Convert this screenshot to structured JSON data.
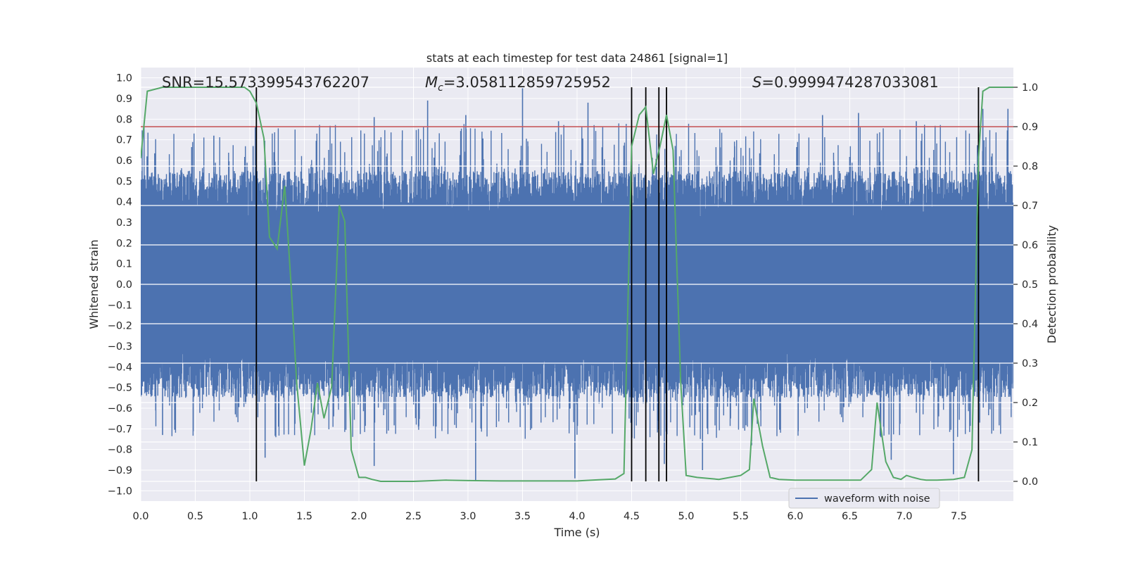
{
  "chart_data": {
    "type": "line",
    "title": "stats at each timestep for test data 24861 [signal=1]",
    "xlabel": "Time (s)",
    "ylabel": "Whitened strain",
    "y2label": "Detection probability",
    "xlim": [
      0,
      8
    ],
    "ylim": [
      -1.05,
      1.05
    ],
    "y2lim": [
      -0.05,
      1.05
    ],
    "xticks": [
      0.0,
      0.5,
      1.0,
      1.5,
      2.0,
      2.5,
      3.0,
      3.5,
      4.0,
      4.5,
      5.0,
      5.5,
      6.0,
      6.5,
      7.0,
      7.5
    ],
    "yticks": [
      -1.0,
      -0.9,
      -0.8,
      -0.7,
      -0.6,
      -0.5,
      -0.4,
      -0.3,
      -0.2,
      -0.1,
      0.0,
      0.1,
      0.2,
      0.3,
      0.4,
      0.5,
      0.6,
      0.7,
      0.8,
      0.9,
      1.0
    ],
    "y2ticks": [
      0.0,
      0.1,
      0.2,
      0.3,
      0.4,
      0.5,
      0.6,
      0.7,
      0.8,
      0.9,
      1.0
    ],
    "grid": true,
    "legend_position": "lower-right",
    "annotations": {
      "snr": "SNR=15.573399543762207",
      "mc_symbol": "M",
      "mc_sub": "c",
      "mc_value": "=3.058112859725952",
      "s_symbol": "S",
      "s_value": "=0.9999474287033081"
    },
    "threshold": {
      "value": 0.9,
      "axis": "right",
      "color": "#c44e52"
    },
    "event_lines": [
      1.06,
      4.5,
      4.63,
      4.75,
      4.82,
      7.68
    ],
    "series": [
      {
        "name": "waveform with noise",
        "axis": "left",
        "color": "#4c72b0",
        "typical_amplitude": 0.45,
        "peak_spikes_top": [
          [
            0.67,
            0.72
          ],
          [
            1.03,
            0.67
          ],
          [
            2.14,
            0.81
          ],
          [
            2.63,
            0.89
          ],
          [
            2.98,
            0.82
          ],
          [
            3.5,
            0.95
          ],
          [
            3.83,
            0.79
          ],
          [
            4.1,
            0.88
          ],
          [
            6.25,
            0.82
          ],
          [
            6.58,
            0.83
          ],
          [
            7.11,
            0.79
          ],
          [
            7.72,
            0.85
          ],
          [
            7.95,
            0.85
          ]
        ],
        "peak_spikes_bottom": [
          [
            0.2,
            -0.73
          ],
          [
            1.14,
            -0.84
          ],
          [
            2.14,
            -0.88
          ],
          [
            3.07,
            -0.95
          ],
          [
            3.98,
            -0.94
          ],
          [
            4.8,
            -0.87
          ],
          [
            5.15,
            -0.9
          ],
          [
            5.6,
            -0.78
          ],
          [
            6.88,
            -0.85
          ],
          [
            7.45,
            -0.92
          ]
        ]
      },
      {
        "name": "",
        "axis": "right",
        "color": "#55a868",
        "x": [
          0.0,
          0.06,
          0.2,
          0.5,
          0.8,
          0.95,
          1.0,
          1.06,
          1.13,
          1.18,
          1.25,
          1.32,
          1.38,
          1.43,
          1.5,
          1.56,
          1.62,
          1.68,
          1.75,
          1.82,
          1.87,
          1.93,
          2.0,
          2.06,
          2.12,
          2.2,
          2.5,
          2.8,
          3.0,
          3.3,
          3.5,
          3.8,
          4.0,
          4.2,
          4.35,
          4.43,
          4.5,
          4.57,
          4.63,
          4.7,
          4.76,
          4.82,
          4.88,
          4.95,
          5.0,
          5.1,
          5.3,
          5.5,
          5.58,
          5.62,
          5.7,
          5.77,
          5.85,
          6.0,
          6.3,
          6.6,
          6.7,
          6.75,
          6.83,
          6.9,
          6.97,
          7.02,
          7.08,
          7.15,
          7.2,
          7.3,
          7.45,
          7.55,
          7.62,
          7.68,
          7.72,
          7.78,
          7.84,
          8.0
        ],
        "y": [
          0.82,
          0.99,
          1.0,
          1.0,
          1.0,
          1.0,
          0.99,
          0.96,
          0.87,
          0.62,
          0.59,
          0.75,
          0.49,
          0.25,
          0.04,
          0.13,
          0.25,
          0.16,
          0.24,
          0.7,
          0.66,
          0.08,
          0.01,
          0.01,
          0.005,
          0.0,
          0.0,
          0.003,
          0.002,
          0.001,
          0.001,
          0.001,
          0.001,
          0.004,
          0.006,
          0.02,
          0.85,
          0.93,
          0.95,
          0.78,
          0.85,
          0.93,
          0.84,
          0.25,
          0.015,
          0.01,
          0.005,
          0.015,
          0.03,
          0.21,
          0.09,
          0.01,
          0.005,
          0.003,
          0.003,
          0.003,
          0.03,
          0.2,
          0.05,
          0.01,
          0.005,
          0.015,
          0.01,
          0.005,
          0.003,
          0.003,
          0.005,
          0.01,
          0.08,
          0.82,
          0.99,
          1.0,
          1.0,
          1.0
        ]
      }
    ]
  }
}
